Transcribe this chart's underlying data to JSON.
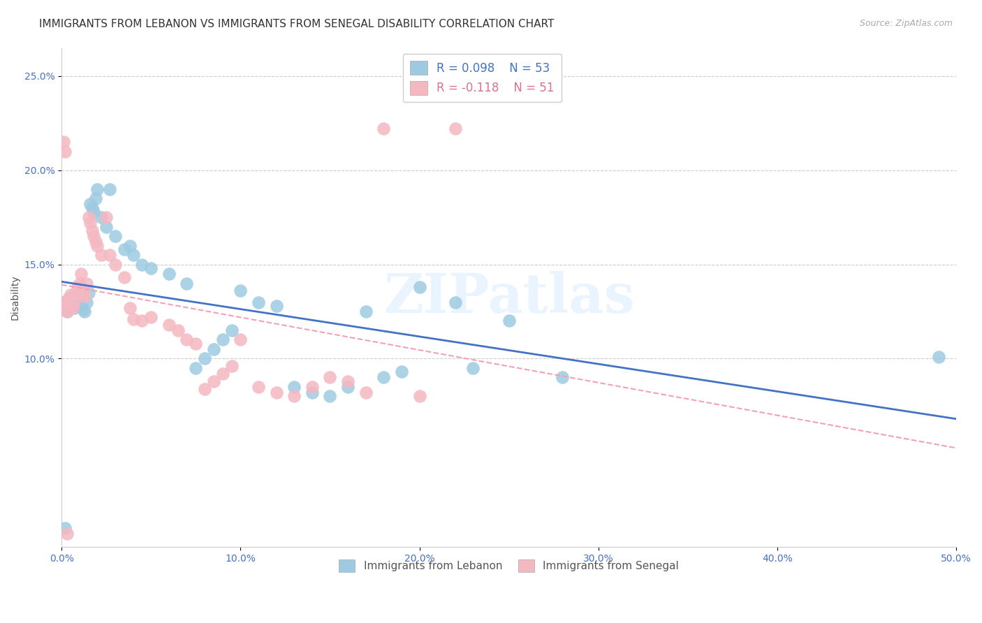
{
  "title": "IMMIGRANTS FROM LEBANON VS IMMIGRANTS FROM SENEGAL DISABILITY CORRELATION CHART",
  "source": "Source: ZipAtlas.com",
  "ylabel": "Disability",
  "xlim": [
    0.0,
    0.5
  ],
  "ylim": [
    0.0,
    0.265
  ],
  "xticks": [
    0.0,
    0.1,
    0.2,
    0.3,
    0.4,
    0.5
  ],
  "xticklabels": [
    "0.0%",
    "10.0%",
    "20.0%",
    "30.0%",
    "40.0%",
    "50.0%"
  ],
  "yticks": [
    0.1,
    0.15,
    0.2,
    0.25
  ],
  "yticklabels": [
    "10.0%",
    "15.0%",
    "20.0%",
    "25.0%"
  ],
  "lebanon_color": "#9ecae1",
  "senegal_color": "#f4b8c1",
  "lebanon_line_color": "#4472c4",
  "senegal_line_color": "#f4a0b5",
  "legend_r_lebanon": "R = 0.098",
  "legend_n_lebanon": "N = 53",
  "legend_r_senegal": "R = -0.118",
  "legend_n_senegal": "N = 51",
  "watermark": "ZIPatlas",
  "lebanon_x": [
    0.001,
    0.002,
    0.003,
    0.004,
    0.005,
    0.006,
    0.007,
    0.008,
    0.009,
    0.01,
    0.011,
    0.012,
    0.013,
    0.014,
    0.015,
    0.016,
    0.017,
    0.018,
    0.019,
    0.02,
    0.022,
    0.025,
    0.027,
    0.03,
    0.035,
    0.038,
    0.04,
    0.045,
    0.05,
    0.06,
    0.07,
    0.075,
    0.08,
    0.085,
    0.09,
    0.095,
    0.1,
    0.11,
    0.12,
    0.13,
    0.14,
    0.15,
    0.16,
    0.17,
    0.18,
    0.19,
    0.2,
    0.22,
    0.23,
    0.25,
    0.28,
    0.49,
    0.002
  ],
  "lebanon_y": [
    0.13,
    0.13,
    0.125,
    0.128,
    0.132,
    0.13,
    0.127,
    0.129,
    0.131,
    0.133,
    0.128,
    0.126,
    0.125,
    0.13,
    0.135,
    0.182,
    0.18,
    0.178,
    0.185,
    0.19,
    0.175,
    0.17,
    0.19,
    0.165,
    0.158,
    0.16,
    0.155,
    0.15,
    0.148,
    0.145,
    0.14,
    0.095,
    0.1,
    0.105,
    0.11,
    0.115,
    0.136,
    0.13,
    0.128,
    0.085,
    0.082,
    0.08,
    0.085,
    0.125,
    0.09,
    0.093,
    0.138,
    0.13,
    0.095,
    0.12,
    0.09,
    0.101,
    0.01
  ],
  "senegal_x": [
    0.001,
    0.002,
    0.003,
    0.004,
    0.005,
    0.006,
    0.007,
    0.008,
    0.009,
    0.01,
    0.011,
    0.012,
    0.013,
    0.014,
    0.015,
    0.016,
    0.017,
    0.018,
    0.019,
    0.02,
    0.022,
    0.025,
    0.027,
    0.03,
    0.035,
    0.038,
    0.04,
    0.045,
    0.05,
    0.06,
    0.065,
    0.07,
    0.075,
    0.08,
    0.085,
    0.09,
    0.095,
    0.1,
    0.11,
    0.12,
    0.13,
    0.14,
    0.15,
    0.16,
    0.17,
    0.18,
    0.2,
    0.22,
    0.001,
    0.002,
    0.003
  ],
  "senegal_y": [
    0.13,
    0.128,
    0.125,
    0.132,
    0.134,
    0.127,
    0.13,
    0.135,
    0.138,
    0.14,
    0.145,
    0.135,
    0.133,
    0.14,
    0.175,
    0.172,
    0.168,
    0.165,
    0.162,
    0.16,
    0.155,
    0.175,
    0.155,
    0.15,
    0.143,
    0.127,
    0.121,
    0.12,
    0.122,
    0.118,
    0.115,
    0.11,
    0.108,
    0.084,
    0.088,
    0.092,
    0.096,
    0.11,
    0.085,
    0.082,
    0.08,
    0.085,
    0.09,
    0.088,
    0.082,
    0.222,
    0.08,
    0.222,
    0.215,
    0.21,
    0.007
  ]
}
